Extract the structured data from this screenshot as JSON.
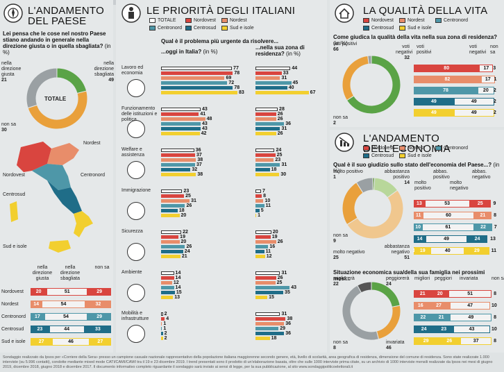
{
  "colors": {
    "totale": "#ffffff",
    "nordovest": "#d9453f",
    "nordest": "#e88d6a",
    "centronord": "#4e97a8",
    "centrosud": "#1f6d88",
    "sud": "#f2cf2f",
    "green": "#5aa346",
    "gray": "#9aa0a3",
    "orange": "#e9a03b",
    "lightgreen": "#b8d79a"
  },
  "legend": [
    "TOTALE",
    "Nordovest",
    "Nordest",
    "Centronord",
    "Centrosud",
    "Sud e isole"
  ],
  "p1": {
    "title": "L'ANDAMENTO DEL PAESE",
    "question": "Lei pensa che le cose nel nostro Paese stiano andando in generale nella direzione giusta o in quella sbagliata?",
    "unit": "(in %)",
    "center": "TOTALE",
    "l_giusta": "nella direzione giusta",
    "v_giusta": "21",
    "l_sbagliata": "nella direzione sbagliata",
    "v_sbagliata": "49",
    "l_nonsa": "non sa",
    "v_nonsa": "30",
    "regions": [
      "Nordest",
      "Nordovest",
      "Centronord",
      "Centrosud",
      "Sud e isole"
    ],
    "col1": "nella direzione giusta",
    "col2": "nella direzione sbagliata",
    "col3": "non sa"
  },
  "p2": {
    "title": "LE PRIORITÀ DEGLI ITALIANI",
    "question": "Qual è il problema più urgente da risolvere...",
    "col1": "...oggi in Italia?",
    "col2": "...nella sua zona di residenza?",
    "unit": "(in %)"
  },
  "p3": {
    "title": "LA QUALITÀ DELLA VITA",
    "question": "Come giudica la qualità della vita nella sua zona di residenza?",
    "unit": "(in %)",
    "l_pos": "voti positivi",
    "v_pos": "66",
    "l_neg": "voti negativi",
    "v_neg": "32",
    "l_ns": "non sa",
    "v_ns": "2",
    "col1": "voti positivi",
    "col2": "voti negativi",
    "col3": "non sa"
  },
  "p4": {
    "title": "L'ANDAMENTO DELL'ECONOMIA",
    "q1": "Qual è il suo giudizio sullo stato dell'economia del Paese...?",
    "unit": "(in %)",
    "l_mp": "molto positivo",
    "v_mp": "1",
    "l_ap": "abbastanza positivo",
    "v_ap": "14",
    "l_ns": "non sa",
    "v_ns": "9",
    "l_an": "abbastanza negativo",
    "v_an": "51",
    "l_mn": "molto negativo",
    "v_mn": "25",
    "c1": "molto positivo",
    "c2": "abbas. positivo",
    "c3": "molto negativo",
    "c4": "abbas. negativo",
    "q2": "Situazione economica sua/della sua famiglia nei prossimi mesi...",
    "l_mig": "migliorerà",
    "v_mig": "22",
    "l_peg": "peggiorerà",
    "v_peg": "24",
    "l_nonsa": "non sa",
    "v_nonsa": "8",
    "l_inv": "invariata",
    "v_inv": "46",
    "d1": "migliori",
    "d2": "peggiori",
    "d3": "invariata",
    "d4": "non sa"
  },
  "footer": "Sondaggio realizzato da Ipsos per «Corriere della Sera» presso un campione casuale nazionale rappresentativo della popolazione italiana maggiorenne secondo genere, età, livello di scolarità, area geografica di residenza, dimensione del comune di residenza. Sono state realizzate 1.000 interviste (su 5.996 contatti), condotte mediante mixed mode CATI/CAMI/CAWI tra il 19 e 23 dicembre 2019. I trend presentati sono il prodotto di un'elaborazione basata, oltre che sulle 1000 interviste prima citate, su un archivio di 1000 interviste mensili realizzate da Ipsos nei mesi di giugno 2019, dicembre 2018, giugno 2018 e dicembre 2017. Il documento informativo completo riguardante il sondaggio sarà inviato ai sensi di legge, per la sua pubblicazione, al sito www.sondaggipoliticoelettorali.it",
  "chart_data": [
    {
      "type": "pie",
      "title": "L'ANDAMENTO DEL PAESE",
      "labels": [
        "nella direzione giusta",
        "nella direzione sbagliata",
        "non sa"
      ],
      "values": [
        21,
        49,
        30
      ]
    },
    {
      "type": "bar",
      "title": "L'ANDAMENTO DEL PAESE",
      "categories": [
        "Nordovest",
        "Nordest",
        "Centronord",
        "Centrosud",
        "Sud e isole"
      ],
      "series": [
        {
          "name": "nella direzione giusta",
          "values": [
            20,
            14,
            17,
            23,
            27
          ]
        },
        {
          "name": "nella direzione sbagliata",
          "values": [
            51,
            54,
            54,
            44,
            46
          ]
        },
        {
          "name": "non sa",
          "values": [
            29,
            32,
            29,
            33,
            27
          ]
        }
      ]
    },
    {
      "type": "bar",
      "title": "LE PRIORITÀ DEGLI ITALIANI",
      "subtitle": "...oggi in Italia?",
      "categories": [
        "Lavoro ed economia",
        "Funzionamento delle istituzioni e politica",
        "Welfare e assistenza",
        "Immigrazione",
        "Sicurezza",
        "Ambiente",
        "Mobilità e infrastrutture"
      ],
      "series": [
        {
          "name": "TOTALE",
          "values": [
            77,
            43,
            36,
            23,
            22,
            14,
            2
          ]
        },
        {
          "name": "Nordovest",
          "values": [
            78,
            41,
            37,
            25,
            19,
            14,
            4
          ]
        },
        {
          "name": "Nordest",
          "values": [
            69,
            48,
            38,
            31,
            20,
            12,
            1
          ]
        },
        {
          "name": "Centronord",
          "values": [
            72,
            43,
            37,
            26,
            26,
            14,
            1
          ]
        },
        {
          "name": "Centrosud",
          "values": [
            78,
            43,
            32,
            18,
            24,
            15,
            2
          ]
        },
        {
          "name": "Sud e isole",
          "values": [
            83,
            42,
            38,
            20,
            21,
            13,
            2
          ]
        }
      ]
    },
    {
      "type": "bar",
      "title": "LE PRIORITÀ DEGLI ITALIANI",
      "subtitle": "...nella sua zona di residenza?",
      "categories": [
        "Lavoro ed economia",
        "Funzionamento delle istituzioni e politica",
        "Welfare e assistenza",
        "Immigrazione",
        "Sicurezza",
        "Ambiente",
        "Mobilità e infrastrutture"
      ],
      "series": [
        {
          "name": "TOTALE",
          "values": [
            44,
            28,
            24,
            7,
            20,
            31,
            31
          ]
        },
        {
          "name": "Nordovest",
          "values": [
            33,
            26,
            25,
            8,
            19,
            26,
            38
          ]
        },
        {
          "name": "Nordest",
          "values": [
            31,
            26,
            23,
            10,
            26,
            25,
            36
          ]
        },
        {
          "name": "Centronord",
          "values": [
            45,
            36,
            31,
            11,
            16,
            43,
            29
          ]
        },
        {
          "name": "Centrosud",
          "values": [
            40,
            31,
            18,
            5,
            11,
            35,
            36
          ]
        },
        {
          "name": "Sud e isole",
          "values": [
            67,
            26,
            30,
            1,
            12,
            15,
            18
          ]
        }
      ]
    },
    {
      "type": "pie",
      "title": "LA QUALITÀ DELLA VITA",
      "labels": [
        "voti positivi",
        "voti negativi",
        "non sa"
      ],
      "values": [
        66,
        32,
        2
      ]
    },
    {
      "type": "bar",
      "title": "LA QUALITÀ DELLA VITA",
      "categories": [
        "Nordovest",
        "Nordest",
        "Centronord",
        "Centrosud",
        "Sud e isole"
      ],
      "series": [
        {
          "name": "voti positivi",
          "values": [
            80,
            82,
            78,
            49,
            49
          ]
        },
        {
          "name": "voti negativi",
          "values": [
            17,
            17,
            20,
            49,
            49
          ]
        },
        {
          "name": "non sa",
          "values": [
            3,
            1,
            2,
            2,
            2
          ]
        }
      ]
    },
    {
      "type": "pie",
      "title": "L'ANDAMENTO DELL'ECONOMIA",
      "labels": [
        "molto positivo",
        "abbastanza positivo",
        "abbastanza negativo",
        "molto negativo",
        "non sa"
      ],
      "values": [
        1,
        14,
        51,
        25,
        9
      ]
    },
    {
      "type": "bar",
      "title": "L'ANDAMENTO DELL'ECONOMIA",
      "categories": [
        "Nordovest",
        "Nordest",
        "Centronord",
        "Centrosud",
        "Sud e isole"
      ],
      "series": [
        {
          "name": "molto positivo",
          "values": [
            0,
            0,
            0,
            0,
            1
          ]
        },
        {
          "name": "abbas. positivo",
          "values": [
            13,
            11,
            10,
            14,
            19
          ]
        },
        {
          "name": "abbas. negativo",
          "values": [
            53,
            60,
            61,
            49,
            40
          ]
        },
        {
          "name": "molto negativo",
          "values": [
            25,
            21,
            22,
            24,
            29
          ]
        },
        {
          "name": "non sa",
          "values": [
            9,
            8,
            7,
            13,
            11
          ]
        }
      ]
    },
    {
      "type": "pie",
      "title": "Situazione economica sua/della sua famiglia nei prossimi mesi...",
      "labels": [
        "migliorerà",
        "peggiorerà",
        "invariata",
        "non sa"
      ],
      "values": [
        22,
        24,
        46,
        8
      ]
    },
    {
      "type": "bar",
      "title": "Situazione economica sua/della sua famiglia nei prossimi mesi...",
      "categories": [
        "Nordovest",
        "Nordest",
        "Centronord",
        "Centrosud",
        "Sud e isole"
      ],
      "series": [
        {
          "name": "migliori",
          "values": [
            21,
            16,
            22,
            24,
            29
          ]
        },
        {
          "name": "peggiori",
          "values": [
            20,
            27,
            21,
            23,
            26
          ]
        },
        {
          "name": "invariata",
          "values": [
            51,
            47,
            49,
            43,
            37
          ]
        },
        {
          "name": "non sa",
          "values": [
            8,
            10,
            8,
            10,
            8
          ]
        }
      ]
    }
  ]
}
